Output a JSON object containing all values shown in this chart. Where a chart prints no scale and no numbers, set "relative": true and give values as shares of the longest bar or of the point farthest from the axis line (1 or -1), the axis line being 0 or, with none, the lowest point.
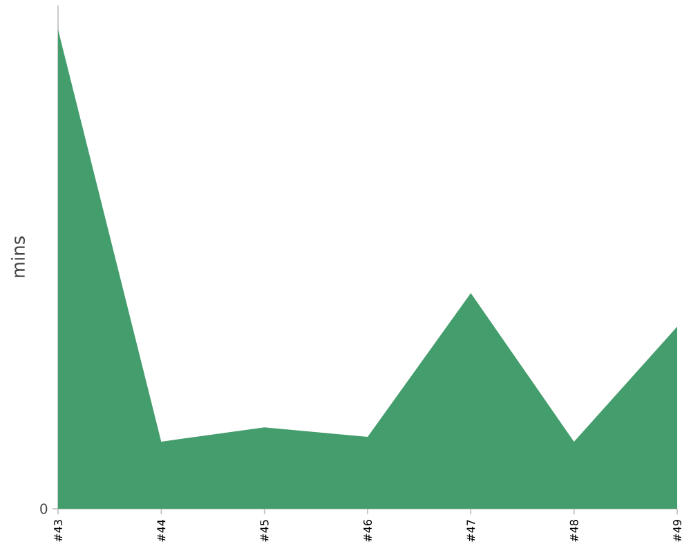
{
  "chart_data": {
    "type": "area",
    "ylabel": "mins",
    "relative": true,
    "categories": [
      "#43",
      "#44",
      "#45",
      "#46",
      "#47",
      "#48",
      "#49"
    ],
    "values": [
      1,
      0.14,
      0.17,
      0.15,
      0.45,
      0.14,
      0.38
    ],
    "color": "#449d6c",
    "annotations": [
      "0"
    ]
  }
}
